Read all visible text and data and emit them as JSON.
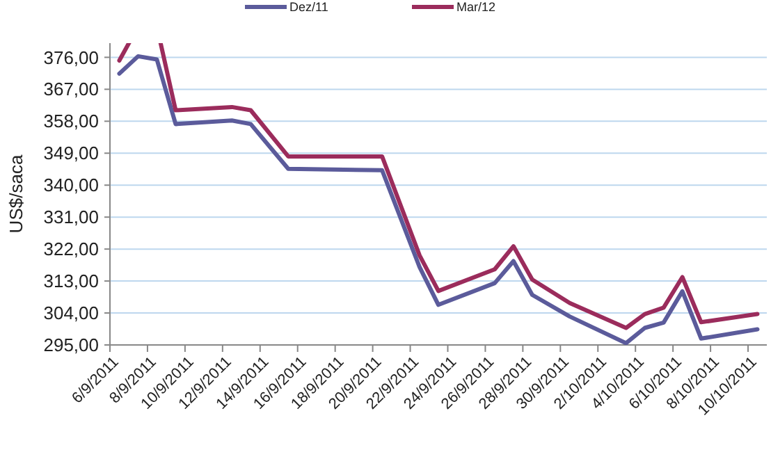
{
  "chart_data": {
    "type": "line",
    "ylabel": "US$/saca",
    "legend": "top",
    "grid": "y",
    "line_style": "solid",
    "xlim": [
      "2011-09-06",
      "2011-10-11"
    ],
    "xticks": [
      {
        "value": "2011-09-06",
        "label": "6/9/2011"
      },
      {
        "value": "2011-09-08",
        "label": "8/9/2011"
      },
      {
        "value": "2011-09-10",
        "label": "10/9/2011"
      },
      {
        "value": "2011-09-12",
        "label": "12/9/2011"
      },
      {
        "value": "2011-09-14",
        "label": "14/9/2011"
      },
      {
        "value": "2011-09-16",
        "label": "16/9/2011"
      },
      {
        "value": "2011-09-18",
        "label": "18/9/2011"
      },
      {
        "value": "2011-09-20",
        "label": "20/9/2011"
      },
      {
        "value": "2011-09-22",
        "label": "22/9/2011"
      },
      {
        "value": "2011-09-24",
        "label": "24/9/2011"
      },
      {
        "value": "2011-09-26",
        "label": "26/9/2011"
      },
      {
        "value": "2011-09-28",
        "label": "28/9/2011"
      },
      {
        "value": "2011-09-30",
        "label": "30/9/2011"
      },
      {
        "value": "2011-10-02",
        "label": "2/10/2011"
      },
      {
        "value": "2011-10-04",
        "label": "4/10/2011"
      },
      {
        "value": "2011-10-06",
        "label": "6/10/2011"
      },
      {
        "value": "2011-10-08",
        "label": "8/10/2011"
      },
      {
        "value": "2011-10-10",
        "label": "10/10/2011"
      }
    ],
    "ylim": [
      295,
      380
    ],
    "yticks": [
      {
        "value": 295,
        "label": "295,00"
      },
      {
        "value": 304,
        "label": "304,00"
      },
      {
        "value": 313,
        "label": "313,00"
      },
      {
        "value": 322,
        "label": "322,00"
      },
      {
        "value": 331,
        "label": "331,00"
      },
      {
        "value": 340,
        "label": "340,00"
      },
      {
        "value": 349,
        "label": "349,00"
      },
      {
        "value": 358,
        "label": "358,00"
      },
      {
        "value": 367,
        "label": "367,00"
      },
      {
        "value": 376,
        "label": "376,00"
      }
    ],
    "x": [
      "2011-09-06T12:00",
      "2011-09-07T12:00",
      "2011-09-08T12:00",
      "2011-09-09T12:00",
      "2011-09-12T12:00",
      "2011-09-13T12:00",
      "2011-09-15T12:00",
      "2011-09-20T12:00",
      "2011-09-22T12:00",
      "2011-09-23T12:00",
      "2011-09-26T12:00",
      "2011-09-27T12:00",
      "2011-09-28T12:00",
      "2011-09-30T12:00",
      "2011-10-03T12:00",
      "2011-10-04T12:00",
      "2011-10-05T12:00",
      "2011-10-06T12:00",
      "2011-10-07T12:00",
      "2011-10-10T12:00"
    ],
    "series": [
      {
        "name": "Dez/11",
        "color": "#5b5b9b",
        "values": [
          371.4,
          376.3,
          375.4,
          357.2,
          358.2,
          357.2,
          344.6,
          344.2,
          316.9,
          306.3,
          312.4,
          318.6,
          309.1,
          303.0,
          295.5,
          299.8,
          301.3,
          310.1,
          296.8,
          299.4
        ]
      },
      {
        "name": "Mar/12",
        "color": "#9b2c5c",
        "values": [
          375.1,
          null,
          null,
          361.1,
          362,
          361.1,
          348.1,
          348.1,
          320.2,
          310.2,
          316.3,
          322.8,
          313.4,
          306.8,
          299.8,
          303.7,
          305.5,
          314.1,
          301.4,
          303.7
        ]
      }
    ]
  }
}
